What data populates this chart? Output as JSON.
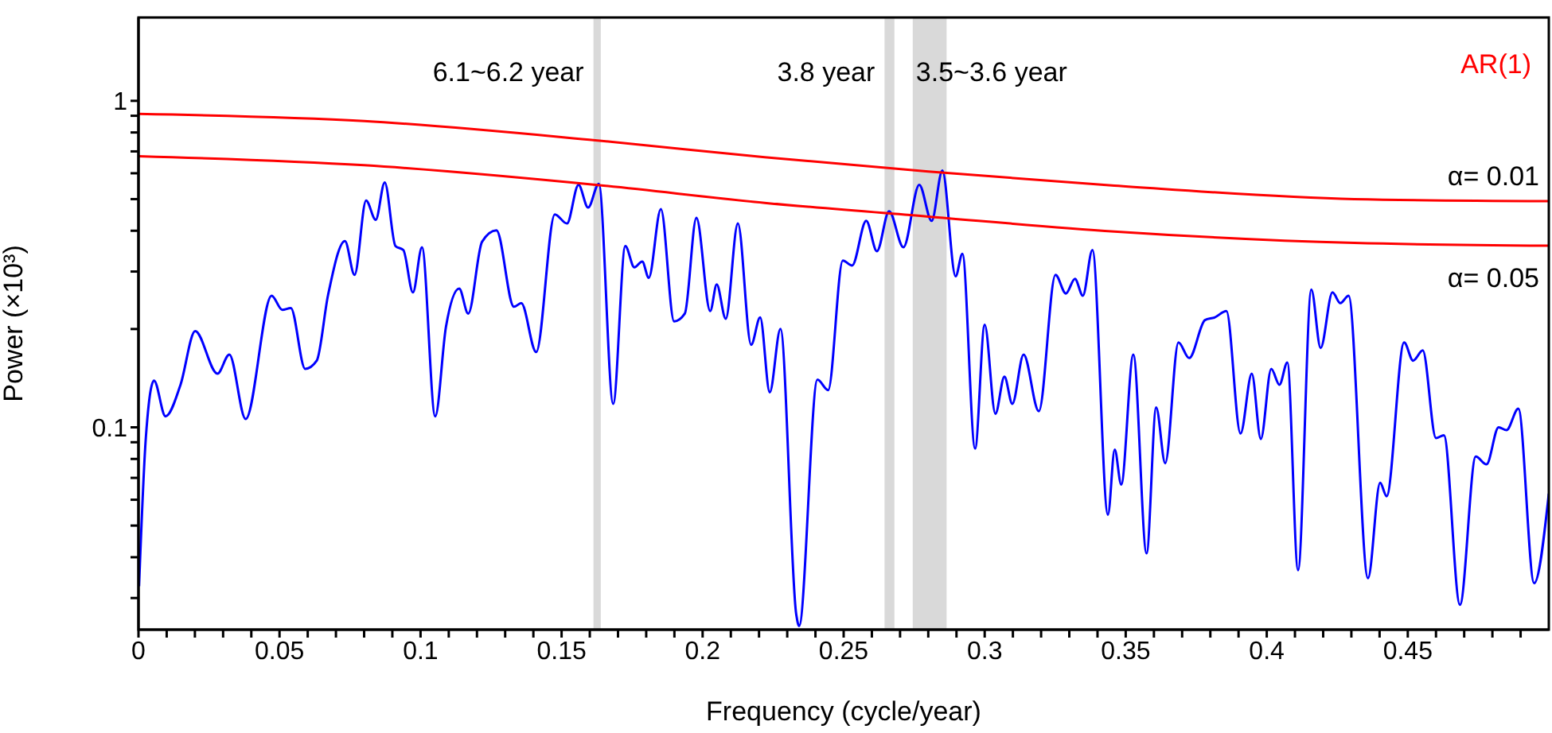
{
  "chart_data": {
    "type": "line",
    "xlabel": "Frequency (cycle/year)",
    "ylabel": "Power (×10³)",
    "log": "y",
    "marker": "none",
    "line_style": "solid",
    "xlim": [
      0,
      0.5
    ],
    "xticks": [
      0,
      {
        "value": 0.01,
        "label": null
      },
      {
        "value": 0.02,
        "label": null
      },
      {
        "value": 0.03,
        "label": null
      },
      {
        "value": 0.04,
        "label": null
      },
      0.05,
      {
        "value": 0.06,
        "label": null
      },
      {
        "value": 0.07,
        "label": null
      },
      {
        "value": 0.08,
        "label": null
      },
      {
        "value": 0.09,
        "label": null
      },
      0.1,
      {
        "value": 0.11,
        "label": null
      },
      {
        "value": 0.12,
        "label": null
      },
      {
        "value": 0.13,
        "label": null
      },
      {
        "value": 0.14,
        "label": null
      },
      0.15,
      {
        "value": 0.16,
        "label": null
      },
      {
        "value": 0.17,
        "label": null
      },
      {
        "value": 0.18,
        "label": null
      },
      {
        "value": 0.19,
        "label": null
      },
      0.2,
      {
        "value": 0.21,
        "label": null
      },
      {
        "value": 0.22,
        "label": null
      },
      {
        "value": 0.23,
        "label": null
      },
      {
        "value": 0.24,
        "label": null
      },
      0.25,
      {
        "value": 0.26,
        "label": null
      },
      {
        "value": 0.27,
        "label": null
      },
      {
        "value": 0.28,
        "label": null
      },
      {
        "value": 0.29,
        "label": null
      },
      0.3,
      {
        "value": 0.31,
        "label": null
      },
      {
        "value": 0.32,
        "label": null
      },
      {
        "value": 0.33,
        "label": null
      },
      {
        "value": 0.34,
        "label": null
      },
      0.35,
      {
        "value": 0.36,
        "label": null
      },
      {
        "value": 0.37,
        "label": null
      },
      {
        "value": 0.38,
        "label": null
      },
      {
        "value": 0.39,
        "label": null
      },
      0.4,
      {
        "value": 0.41,
        "label": null
      },
      {
        "value": 0.42,
        "label": null
      },
      {
        "value": 0.43,
        "label": null
      },
      {
        "value": 0.44,
        "label": null
      },
      0.45,
      {
        "value": 0.46,
        "label": null
      },
      {
        "value": 0.47,
        "label": null
      },
      {
        "value": 0.48,
        "label": null
      },
      {
        "value": 0.49,
        "label": null
      }
    ],
    "ylim": [
      0.024,
      1.8
    ],
    "yticks": [
      {
        "value": 0.03,
        "label": null
      },
      {
        "value": 0.04,
        "label": null
      },
      {
        "value": 0.05,
        "label": null
      },
      {
        "value": 0.06,
        "label": null
      },
      {
        "value": 0.07,
        "label": null
      },
      {
        "value": 0.08,
        "label": null
      },
      {
        "value": 0.09,
        "label": null
      },
      0.1,
      {
        "value": 0.2,
        "label": null
      },
      {
        "value": 0.3,
        "label": null
      },
      {
        "value": 0.4,
        "label": null
      },
      {
        "value": 0.5,
        "label": null
      },
      {
        "value": 0.6,
        "label": null
      },
      {
        "value": 0.7,
        "label": null
      },
      {
        "value": 0.8,
        "label": null
      },
      {
        "value": 0.9,
        "label": null
      },
      1
    ],
    "series": [
      {
        "color": "#0000ff",
        "x": [
          0.0002,
          0.0026,
          0.0055,
          0.0096,
          0.0149,
          0.0201,
          0.028,
          0.0322,
          0.038,
          0.0472,
          0.051,
          0.054,
          0.0591,
          0.0632,
          0.0672,
          0.0732,
          0.0766,
          0.0807,
          0.0841,
          0.0873,
          0.0911,
          0.0939,
          0.0973,
          0.1005,
          0.1052,
          0.109,
          0.1137,
          0.1169,
          0.1218,
          0.1269,
          0.1331,
          0.1357,
          0.141,
          0.1476,
          0.1519,
          0.156,
          0.1594,
          0.1632,
          0.1683,
          0.1726,
          0.1758,
          0.1786,
          0.1809,
          0.1852,
          0.1899,
          0.1937,
          0.1978,
          0.2027,
          0.205,
          0.2082,
          0.2125,
          0.2172,
          0.2204,
          0.2238,
          0.2276,
          0.2332,
          0.2342,
          0.2407,
          0.2445,
          0.2497,
          0.253,
          0.258,
          0.2618,
          0.2661,
          0.2712,
          0.2768,
          0.2812,
          0.285,
          0.2897,
          0.2921,
          0.2966,
          0.3,
          0.3038,
          0.307,
          0.3098,
          0.3138,
          0.3192,
          0.3251,
          0.3288,
          0.332,
          0.3348,
          0.3382,
          0.3437,
          0.3461,
          0.3484,
          0.3527,
          0.3574,
          0.3608,
          0.364,
          0.3687,
          0.3725,
          0.3781,
          0.3815,
          0.3857,
          0.3907,
          0.3947,
          0.3979,
          0.4016,
          0.4045,
          0.4073,
          0.4111,
          0.4158,
          0.4191,
          0.4233,
          0.4261,
          0.429,
          0.4359,
          0.4402,
          0.4425,
          0.4487,
          0.4519,
          0.4553,
          0.46,
          0.4628,
          0.4685,
          0.4741,
          0.4779,
          0.4822,
          0.485,
          0.4892,
          0.4948,
          0.5
        ],
        "values": [
          0.0326,
          0.0927,
          0.139,
          0.108,
          0.135,
          0.197,
          0.146,
          0.167,
          0.106,
          0.253,
          0.229,
          0.232,
          0.151,
          0.16,
          0.254,
          0.372,
          0.293,
          0.495,
          0.432,
          0.562,
          0.359,
          0.349,
          0.259,
          0.356,
          0.108,
          0.203,
          0.266,
          0.223,
          0.37,
          0.401,
          0.234,
          0.24,
          0.17,
          0.449,
          0.421,
          0.553,
          0.471,
          0.557,
          0.118,
          0.359,
          0.309,
          0.322,
          0.287,
          0.466,
          0.211,
          0.223,
          0.438,
          0.227,
          0.274,
          0.215,
          0.421,
          0.179,
          0.217,
          0.128,
          0.2,
          0.0267,
          0.0246,
          0.14,
          0.13,
          0.324,
          0.313,
          0.429,
          0.346,
          0.459,
          0.356,
          0.553,
          0.429,
          0.612,
          0.29,
          0.34,
          0.0861,
          0.206,
          0.11,
          0.143,
          0.118,
          0.167,
          0.112,
          0.293,
          0.257,
          0.285,
          0.253,
          0.349,
          0.054,
          0.0855,
          0.0668,
          0.167,
          0.0411,
          0.115,
          0.0776,
          0.182,
          0.163,
          0.213,
          0.217,
          0.227,
          0.0957,
          0.146,
          0.0921,
          0.151,
          0.135,
          0.158,
          0.0365,
          0.264,
          0.175,
          0.259,
          0.24,
          0.253,
          0.0345,
          0.0676,
          0.0615,
          0.182,
          0.16,
          0.172,
          0.0927,
          0.0946,
          0.0286,
          0.0814,
          0.077,
          0.1,
          0.098,
          0.114,
          0.0333,
          0.0626
        ]
      },
      {
        "name": "α= 0.01",
        "color": "#ff0000",
        "x": [
          0,
          0.08,
          0.162,
          0.222,
          0.28,
          0.346,
          0.431,
          0.5
        ],
        "values": [
          0.912,
          0.867,
          0.757,
          0.672,
          0.607,
          0.55,
          0.5,
          0.493
        ]
      },
      {
        "name": "α= 0.05",
        "color": "#ff0000",
        "x": [
          0,
          0.08,
          0.162,
          0.222,
          0.28,
          0.346,
          0.431,
          0.5
        ],
        "values": [
          0.677,
          0.635,
          0.553,
          0.487,
          0.442,
          0.398,
          0.367,
          0.36
        ]
      }
    ],
    "bands": [
      {
        "axis": "x",
        "from": 0.1613,
        "to": 0.1639,
        "color": "#d9d9d9",
        "label": "6.1~6.2 year"
      },
      {
        "axis": "x",
        "from": 0.2645,
        "to": 0.268,
        "color": "#d9d9d9",
        "label": "3.8 year"
      },
      {
        "axis": "x",
        "from": 0.2745,
        "to": 0.2865,
        "color": "#d9d9d9",
        "label": "3.5~3.6 year"
      }
    ],
    "annotations": [
      "AR(1)"
    ]
  }
}
